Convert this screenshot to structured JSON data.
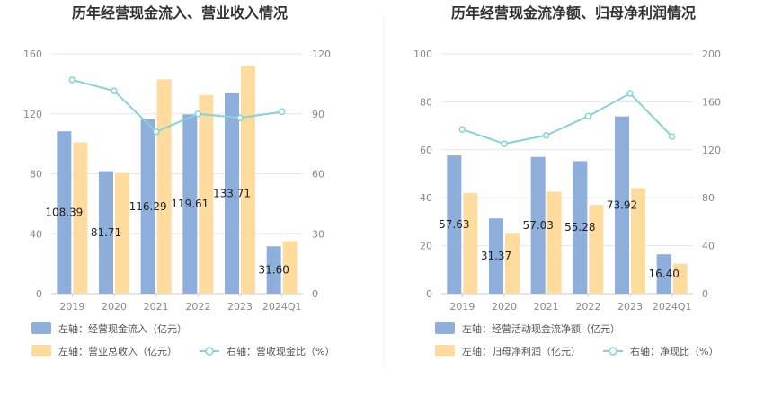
{
  "colors": {
    "bar_primary": "#8eaedb",
    "bar_secondary": "#ffdb9e",
    "line": "#85d3d8",
    "grid": "#e6e6e6",
    "axis": "#cccccc",
    "text": "#333333"
  },
  "chart_data": [
    {
      "type": "bar",
      "title": "历年经营现金流入、营业收入情况",
      "categories": [
        "2019",
        "2020",
        "2021",
        "2022",
        "2023",
        "2024Q1"
      ],
      "left_axis": {
        "ticks": [
          "0",
          "40",
          "80",
          "120",
          "160"
        ],
        "range": [
          0,
          160
        ]
      },
      "right_axis": {
        "ticks": [
          "0",
          "30",
          "60",
          "90",
          "120"
        ],
        "range": [
          0,
          120
        ]
      },
      "series": [
        {
          "name": "左轴：经营现金流入（亿元）",
          "axis": "left",
          "kind": "bar",
          "values": [
            108.39,
            81.71,
            116.29,
            119.61,
            133.71,
            31.6
          ],
          "labels": [
            "108.39",
            "81.71",
            "116.29",
            "119.61",
            "133.71",
            "31.60"
          ]
        },
        {
          "name": "左轴：营业总收入（亿元）",
          "axis": "left",
          "kind": "bar",
          "values": [
            101,
            80.5,
            143,
            132.5,
            152,
            35
          ]
        },
        {
          "name": "右轴：营收现金比（%）",
          "axis": "right",
          "kind": "line",
          "values": [
            107,
            101.5,
            81,
            90,
            88,
            91
          ]
        }
      ]
    },
    {
      "type": "bar",
      "title": "历年经营现金流净额、归母净利润情况",
      "categories": [
        "2019",
        "2020",
        "2021",
        "2022",
        "2023",
        "2024Q1"
      ],
      "left_axis": {
        "ticks": [
          "0",
          "20",
          "40",
          "60",
          "80",
          "100"
        ],
        "range": [
          0,
          100
        ]
      },
      "right_axis": {
        "ticks": [
          "0",
          "40",
          "80",
          "120",
          "160",
          "200"
        ],
        "range": [
          0,
          200
        ]
      },
      "series": [
        {
          "name": "左轴：经营活动现金流净额（亿元）",
          "axis": "left",
          "kind": "bar",
          "values": [
            57.63,
            31.37,
            57.03,
            55.28,
            73.92,
            16.4
          ],
          "labels": [
            "57.63",
            "31.37",
            "57.03",
            "55.28",
            "73.92",
            "16.40"
          ]
        },
        {
          "name": "左轴：归母净利润（亿元）",
          "axis": "left",
          "kind": "bar",
          "values": [
            42,
            25,
            42.5,
            37,
            44,
            12.5
          ]
        },
        {
          "name": "右轴：净现比（%）",
          "axis": "right",
          "kind": "line",
          "values": [
            137,
            125,
            132,
            148,
            167,
            131
          ]
        }
      ]
    }
  ]
}
